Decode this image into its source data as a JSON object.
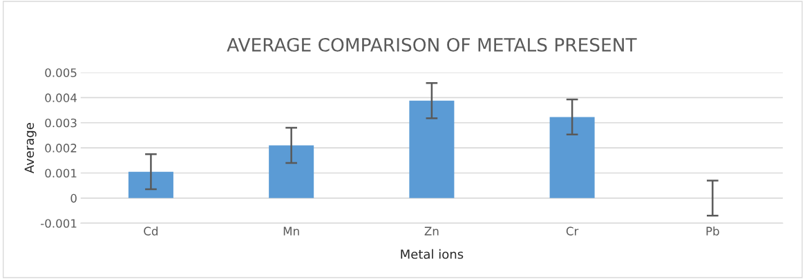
{
  "chart_data": {
    "type": "bar",
    "title": "AVERAGE COMPARISON OF METALS PRESENT",
    "xlabel": "Metal ions",
    "ylabel": "Average",
    "categories": [
      "Cd",
      "Mn",
      "Zn",
      "Cr",
      "Pb"
    ],
    "values": [
      0.00105,
      0.0021,
      0.00388,
      0.00323,
      0
    ],
    "errors": [
      0.0007,
      0.0007,
      0.0007,
      0.0007,
      0.0007
    ],
    "color": "#5b9bd5",
    "ylim": [
      -0.001,
      0.005
    ],
    "yticks": [
      -0.001,
      0,
      0.001,
      0.002,
      0.003,
      0.004,
      0.005
    ],
    "grid": "y"
  }
}
